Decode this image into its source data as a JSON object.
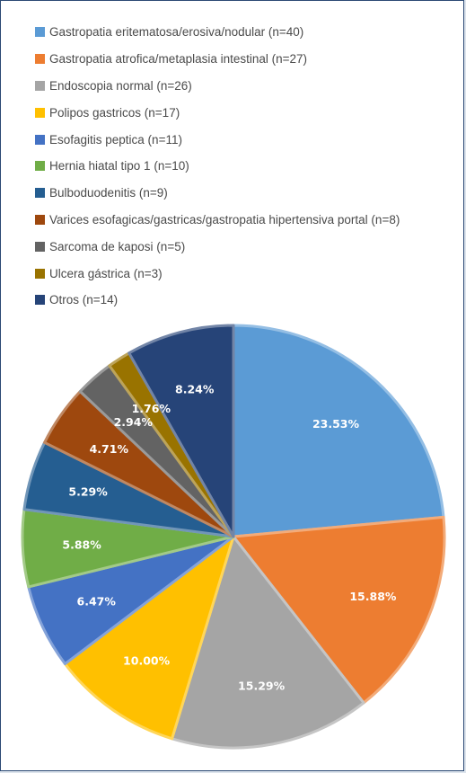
{
  "chart_data": {
    "type": "pie",
    "slices": [
      {
        "name": "Gastropatia eritematosa/erosiva/nodular (n=40)",
        "value": 23.53,
        "label": "23.53%",
        "color": "#5b9bd5"
      },
      {
        "name": "Gastropatia atrofica/metaplasia intestinal (n=27)",
        "value": 15.88,
        "label": "15.88%",
        "color": "#ed7d31"
      },
      {
        "name": "Endoscopia normal (n=26)",
        "value": 15.29,
        "label": "15.29%",
        "color": "#a5a5a5"
      },
      {
        "name": "Polipos gastricos (n=17)",
        "value": 10.0,
        "label": "10.00%",
        "color": "#ffc000"
      },
      {
        "name": "Esofagitis peptica (n=11)",
        "value": 6.47,
        "label": "6.47%",
        "color": "#4472c4"
      },
      {
        "name": "Hernia hiatal tipo 1 (n=10)",
        "value": 5.88,
        "label": "5.88%",
        "color": "#70ad47"
      },
      {
        "name": "Bulboduodenitis (n=9)",
        "value": 5.29,
        "label": "5.29%",
        "color": "#255e91"
      },
      {
        "name": "Varices esofagicas/gastricas/gastropatia hipertensiva portal (n=8)",
        "value": 4.71,
        "label": "4.71%",
        "color": "#9e480e"
      },
      {
        "name": "Sarcoma de kaposi (n=5)",
        "value": 2.94,
        "label": "2.94%",
        "color": "#636363"
      },
      {
        "name": "Ulcera gástrica (n=3)",
        "value": 1.76,
        "label": "1.76%",
        "color": "#997300"
      },
      {
        "name": "Otros (n=14)",
        "value": 8.24,
        "label": "8.24%",
        "color": "#264478"
      }
    ],
    "legend_position": "top"
  }
}
